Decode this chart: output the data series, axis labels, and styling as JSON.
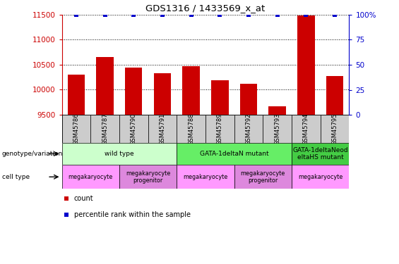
{
  "title": "GDS1316 / 1433569_x_at",
  "samples": [
    "GSM45786",
    "GSM45787",
    "GSM45790",
    "GSM45791",
    "GSM45788",
    "GSM45789",
    "GSM45792",
    "GSM45793",
    "GSM45794",
    "GSM45795"
  ],
  "counts": [
    10300,
    10650,
    10440,
    10325,
    10470,
    10195,
    10115,
    9675,
    11485,
    10270
  ],
  "percentiles": [
    100,
    100,
    100,
    100,
    100,
    100,
    100,
    100,
    100,
    100
  ],
  "ylim_left": [
    9500,
    11500
  ],
  "ylim_right": [
    0,
    100
  ],
  "yticks_left": [
    9500,
    10000,
    10500,
    11000,
    11500
  ],
  "yticks_right": [
    0,
    25,
    50,
    75,
    100
  ],
  "bar_color": "#cc0000",
  "percentile_color": "#0000cc",
  "grid_color": "#555555",
  "bg_color": "#ffffff",
  "genotype_groups": [
    {
      "label": "wild type",
      "start": 0,
      "end": 4,
      "color": "#ccffcc"
    },
    {
      "label": "GATA-1deltaN mutant",
      "start": 4,
      "end": 8,
      "color": "#66ee66"
    },
    {
      "label": "GATA-1deltaNeod\neltaHS mutant",
      "start": 8,
      "end": 10,
      "color": "#44cc44"
    }
  ],
  "celltype_groups": [
    {
      "label": "megakaryocyte",
      "start": 0,
      "end": 2
    },
    {
      "label": "megakaryocyte\nprogenitor",
      "start": 2,
      "end": 4
    },
    {
      "label": "megakaryocyte",
      "start": 4,
      "end": 6
    },
    {
      "label": "megakaryocyte\nprogenitor",
      "start": 6,
      "end": 8
    },
    {
      "label": "megakaryocyte",
      "start": 8,
      "end": 10
    }
  ],
  "tick_color_left": "#cc0000",
  "tick_color_right": "#0000cc",
  "sample_bg": "#cccccc"
}
